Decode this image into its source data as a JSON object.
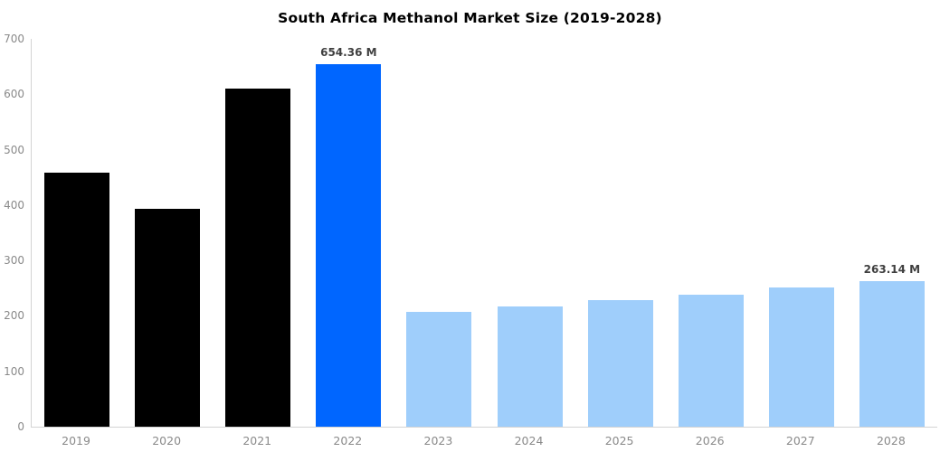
{
  "title": "South Africa Methanol Market Size (2019-2028)",
  "colors": {
    "historical_bar": "#000000",
    "highlight_bar": "#0066ff",
    "forecast_bar": "#9fcefb",
    "axis_line": "#d3d3d3",
    "tick_text": "#8a8a8a",
    "value_label_text": "#3f3f3f",
    "title_text": "#000000",
    "background": "#ffffff"
  },
  "chart_data": {
    "type": "bar",
    "title": "South Africa Methanol Market Size (2019-2028)",
    "categories": [
      "2019",
      "2020",
      "2021",
      "2022",
      "2023",
      "2024",
      "2025",
      "2026",
      "2027",
      "2028"
    ],
    "values": [
      458,
      393,
      610,
      654.36,
      207,
      217,
      228,
      239,
      251,
      263.14
    ],
    "bar_roles": [
      "historical",
      "historical",
      "historical",
      "highlight",
      "forecast",
      "forecast",
      "forecast",
      "forecast",
      "forecast",
      "forecast"
    ],
    "value_labels": [
      "",
      "",
      "",
      "654.36 M",
      "",
      "",
      "",
      "",
      "",
      "263.14 M"
    ],
    "unit": "M",
    "xlabel": "",
    "ylabel": "",
    "ylim": [
      0,
      700
    ],
    "yticks": [
      0,
      100,
      200,
      300,
      400,
      500,
      600,
      700
    ],
    "grid": false,
    "legend": false
  }
}
